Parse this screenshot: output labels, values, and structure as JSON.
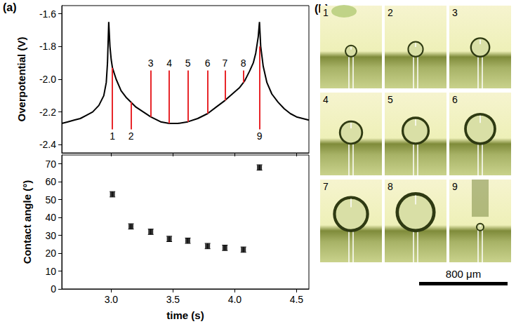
{
  "chart_data": [
    {
      "type": "line",
      "y_label": "Overpotential (V)",
      "x": [
        2.6,
        2.65,
        2.7,
        2.75,
        2.8,
        2.85,
        2.9,
        2.94,
        2.96,
        2.97,
        2.98,
        2.99,
        3.0,
        3.01,
        3.04,
        3.08,
        3.12,
        3.16,
        3.2,
        3.26,
        3.32,
        3.4,
        3.47,
        3.54,
        3.62,
        3.7,
        3.78,
        3.85,
        3.92,
        3.98,
        4.04,
        4.08,
        4.12,
        4.15,
        4.17,
        4.19,
        4.2,
        4.21,
        4.23,
        4.26,
        4.3,
        4.35,
        4.4,
        4.45,
        4.5,
        4.55,
        4.6
      ],
      "values": [
        -2.27,
        -2.26,
        -2.25,
        -2.24,
        -2.22,
        -2.2,
        -2.16,
        -2.1,
        -2.02,
        -1.9,
        -1.65,
        -1.8,
        -1.88,
        -1.93,
        -2.0,
        -2.07,
        -2.11,
        -2.14,
        -2.17,
        -2.2,
        -2.23,
        -2.26,
        -2.27,
        -2.27,
        -2.26,
        -2.24,
        -2.21,
        -2.17,
        -2.13,
        -2.09,
        -2.05,
        -2.01,
        -1.95,
        -1.9,
        -1.84,
        -1.74,
        -1.65,
        -1.8,
        -1.92,
        -2.02,
        -2.09,
        -2.14,
        -2.18,
        -2.21,
        -2.23,
        -2.24,
        -2.25
      ],
      "color": "#000000",
      "xlim": [
        2.6,
        4.6
      ],
      "xticks": [
        {
          "value": 3,
          "label": "3.0"
        },
        3.5,
        {
          "value": 4,
          "label": "4.0"
        },
        4.5
      ],
      "ylim": [
        -2.45,
        -1.55
      ],
      "yticks": [
        -2.4,
        -2.2,
        {
          "value": -2,
          "label": "-2.0"
        },
        -1.8,
        -1.6
      ],
      "tick_labels": "y",
      "markers": {
        "labels": [
          "1",
          "2",
          "3",
          "4",
          "5",
          "6",
          "7",
          "8",
          "9"
        ],
        "x": [
          3.01,
          3.16,
          3.32,
          3.47,
          3.62,
          3.78,
          3.92,
          4.07,
          4.2
        ],
        "y": [
          -1.93,
          -2.14,
          -2.23,
          -2.27,
          -2.26,
          -2.21,
          -2.13,
          -2.02,
          -1.8
        ],
        "side": [
          "below",
          "below",
          "above",
          "above",
          "above",
          "above",
          "above",
          "above",
          "below"
        ],
        "color": "#e8262a"
      }
    },
    {
      "type": "scatter",
      "x_label": "time (s)",
      "y_label": "Contact angle (°)",
      "x": [
        3.01,
        3.16,
        3.32,
        3.47,
        3.62,
        3.78,
        3.92,
        4.07,
        4.2
      ],
      "values": [
        53,
        35,
        32,
        28,
        27,
        24,
        23,
        22,
        68
      ],
      "errors": [
        1.5,
        1.5,
        1.5,
        1.5,
        1.5,
        1.5,
        1.5,
        1.5,
        1.5
      ],
      "color": "#000000",
      "marker": "square",
      "xlim": [
        2.6,
        4.6
      ],
      "xticks": [
        {
          "value": 3,
          "label": "3.0"
        },
        3.5,
        {
          "value": 4,
          "label": "4.0"
        },
        4.5
      ],
      "ylim": [
        0,
        75
      ],
      "yticks": [
        0,
        10,
        20,
        30,
        40,
        50,
        60,
        70
      ]
    }
  ],
  "panel_labels": [
    "(a)",
    "(b)"
  ],
  "photos": {
    "frames": [
      "1",
      "2",
      "3",
      "4",
      "5",
      "6",
      "7",
      "8",
      "9"
    ],
    "scale_bar": "800 μm"
  }
}
